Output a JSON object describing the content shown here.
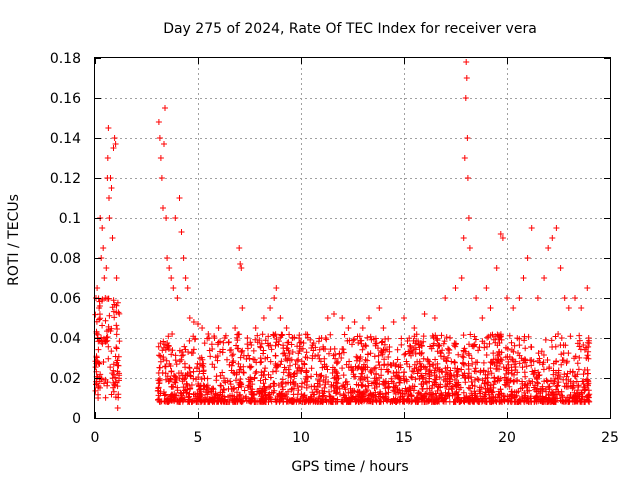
{
  "chart_data": {
    "type": "scatter",
    "title": "Day 275 of 2024, Rate Of TEC Index for receiver vera",
    "xlabel": "GPS time / hours",
    "ylabel": "ROTI / TECUs",
    "xlim": [
      0,
      25
    ],
    "ylim": [
      0,
      0.18
    ],
    "x_ticks": [
      0,
      5,
      10,
      15,
      20,
      25
    ],
    "y_ticks": [
      0,
      0.02,
      0.04,
      0.06,
      0.08,
      0.1,
      0.12,
      0.14,
      0.16,
      0.18
    ],
    "x_tick_labels": [
      "0",
      "5",
      "10",
      "15",
      "20",
      "25"
    ],
    "y_tick_labels": [
      "0",
      "0.02",
      "0.04",
      "0.06",
      "0.08",
      "0.1",
      "0.12",
      "0.14",
      "0.16",
      "0.18"
    ],
    "grid": true,
    "marker": "plus",
    "marker_color": "#ff0000",
    "data_gap_hours": [
      1.2,
      3.05
    ],
    "series": [
      {
        "name": "ROTI",
        "points": [
          [
            0.05,
            0.06
          ],
          [
            0.1,
            0.065
          ],
          [
            0.12,
            0.04
          ],
          [
            0.15,
            0.01
          ],
          [
            0.2,
            0.055
          ],
          [
            0.25,
            0.1
          ],
          [
            0.3,
            0.08
          ],
          [
            0.35,
            0.095
          ],
          [
            0.4,
            0.085
          ],
          [
            0.45,
            0.07
          ],
          [
            0.5,
            0.06
          ],
          [
            0.55,
            0.075
          ],
          [
            0.6,
            0.12
          ],
          [
            0.62,
            0.13
          ],
          [
            0.65,
            0.145
          ],
          [
            0.68,
            0.11
          ],
          [
            0.7,
            0.1
          ],
          [
            0.75,
            0.12
          ],
          [
            0.8,
            0.115
          ],
          [
            0.85,
            0.09
          ],
          [
            0.9,
            0.135
          ],
          [
            0.95,
            0.14
          ],
          [
            1.0,
            0.137
          ],
          [
            1.05,
            0.07
          ],
          [
            1.1,
            0.005
          ],
          [
            3.1,
            0.148
          ],
          [
            3.15,
            0.14
          ],
          [
            3.2,
            0.13
          ],
          [
            3.25,
            0.12
          ],
          [
            3.3,
            0.105
          ],
          [
            3.35,
            0.137
          ],
          [
            3.4,
            0.155
          ],
          [
            3.45,
            0.1
          ],
          [
            3.5,
            0.08
          ],
          [
            3.6,
            0.075
          ],
          [
            3.7,
            0.07
          ],
          [
            3.8,
            0.065
          ],
          [
            3.9,
            0.1
          ],
          [
            4.0,
            0.06
          ],
          [
            4.1,
            0.11
          ],
          [
            4.2,
            0.093
          ],
          [
            4.3,
            0.08
          ],
          [
            4.4,
            0.07
          ],
          [
            4.5,
            0.065
          ],
          [
            4.6,
            0.05
          ],
          [
            4.8,
            0.048
          ],
          [
            5.0,
            0.047
          ],
          [
            5.2,
            0.045
          ],
          [
            5.5,
            0.042
          ],
          [
            5.8,
            0.04
          ],
          [
            6.0,
            0.045
          ],
          [
            6.3,
            0.04
          ],
          [
            6.5,
            0.038
          ],
          [
            6.8,
            0.045
          ],
          [
            7.0,
            0.085
          ],
          [
            7.05,
            0.077
          ],
          [
            7.1,
            0.075
          ],
          [
            7.15,
            0.055
          ],
          [
            7.4,
            0.04
          ],
          [
            7.8,
            0.045
          ],
          [
            8.2,
            0.05
          ],
          [
            8.5,
            0.055
          ],
          [
            8.7,
            0.06
          ],
          [
            8.8,
            0.065
          ],
          [
            9.0,
            0.05
          ],
          [
            9.3,
            0.045
          ],
          [
            9.6,
            0.04
          ],
          [
            10.0,
            0.038
          ],
          [
            10.5,
            0.035
          ],
          [
            11.0,
            0.04
          ],
          [
            11.3,
            0.05
          ],
          [
            11.6,
            0.052
          ],
          [
            12.0,
            0.05
          ],
          [
            12.3,
            0.045
          ],
          [
            12.6,
            0.048
          ],
          [
            13.0,
            0.045
          ],
          [
            13.3,
            0.05
          ],
          [
            13.8,
            0.055
          ],
          [
            14.0,
            0.045
          ],
          [
            14.5,
            0.048
          ],
          [
            15.0,
            0.05
          ],
          [
            15.5,
            0.045
          ],
          [
            16.0,
            0.052
          ],
          [
            16.5,
            0.05
          ],
          [
            17.0,
            0.06
          ],
          [
            17.5,
            0.065
          ],
          [
            17.8,
            0.07
          ],
          [
            17.9,
            0.09
          ],
          [
            17.95,
            0.13
          ],
          [
            18.0,
            0.16
          ],
          [
            18.02,
            0.178
          ],
          [
            18.05,
            0.17
          ],
          [
            18.08,
            0.14
          ],
          [
            18.1,
            0.12
          ],
          [
            18.15,
            0.1
          ],
          [
            18.2,
            0.085
          ],
          [
            18.5,
            0.06
          ],
          [
            18.8,
            0.05
          ],
          [
            19.0,
            0.065
          ],
          [
            19.2,
            0.055
          ],
          [
            19.5,
            0.075
          ],
          [
            19.7,
            0.092
          ],
          [
            19.8,
            0.09
          ],
          [
            20.0,
            0.06
          ],
          [
            20.3,
            0.055
          ],
          [
            20.6,
            0.06
          ],
          [
            20.8,
            0.07
          ],
          [
            21.0,
            0.08
          ],
          [
            21.2,
            0.095
          ],
          [
            21.5,
            0.06
          ],
          [
            21.8,
            0.07
          ],
          [
            22.0,
            0.085
          ],
          [
            22.2,
            0.09
          ],
          [
            22.4,
            0.095
          ],
          [
            22.6,
            0.075
          ],
          [
            22.8,
            0.06
          ],
          [
            23.0,
            0.055
          ],
          [
            23.3,
            0.06
          ],
          [
            23.6,
            0.055
          ],
          [
            23.9,
            0.065
          ]
        ]
      }
    ]
  }
}
